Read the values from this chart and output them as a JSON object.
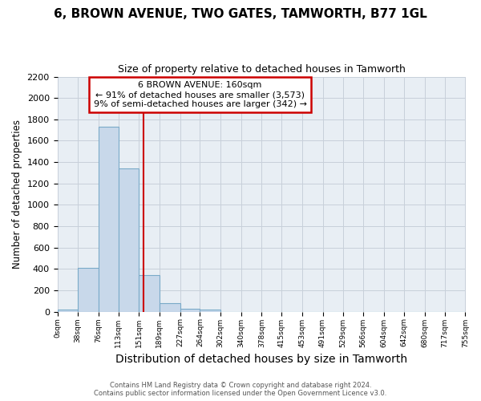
{
  "title": "6, BROWN AVENUE, TWO GATES, TAMWORTH, B77 1GL",
  "subtitle": "Size of property relative to detached houses in Tamworth",
  "xlabel": "Distribution of detached houses by size in Tamworth",
  "ylabel": "Number of detached properties",
  "bin_edges": [
    0,
    38,
    76,
    113,
    151,
    189,
    227,
    264,
    302,
    340,
    378,
    415,
    453,
    491,
    529,
    566,
    604,
    642,
    680,
    717,
    755
  ],
  "bin_counts": [
    20,
    410,
    1730,
    1340,
    340,
    80,
    30,
    20,
    0,
    0,
    0,
    0,
    0,
    0,
    0,
    0,
    0,
    0,
    0,
    0
  ],
  "bar_color": "#c8d8ea",
  "bar_edge_color": "#7aaac8",
  "property_size": 160,
  "vline_color": "#cc0000",
  "annotation_line1": "6 BROWN AVENUE: 160sqm",
  "annotation_line2": "← 91% of detached houses are smaller (3,573)",
  "annotation_line3": "9% of semi-detached houses are larger (342) →",
  "annotation_box_edgecolor": "#cc0000",
  "ylim": [
    0,
    2200
  ],
  "yticks": [
    0,
    200,
    400,
    600,
    800,
    1000,
    1200,
    1400,
    1600,
    1800,
    2000,
    2200
  ],
  "footer_line1": "Contains HM Land Registry data © Crown copyright and database right 2024.",
  "footer_line2": "Contains public sector information licensed under the Open Government Licence v3.0.",
  "bg_color": "#ffffff",
  "plot_bg_color": "#e8eef4",
  "grid_color": "#c8d0da",
  "title_fontsize": 11,
  "subtitle_fontsize": 9,
  "xlabel_fontsize": 10,
  "ylabel_fontsize": 8.5
}
